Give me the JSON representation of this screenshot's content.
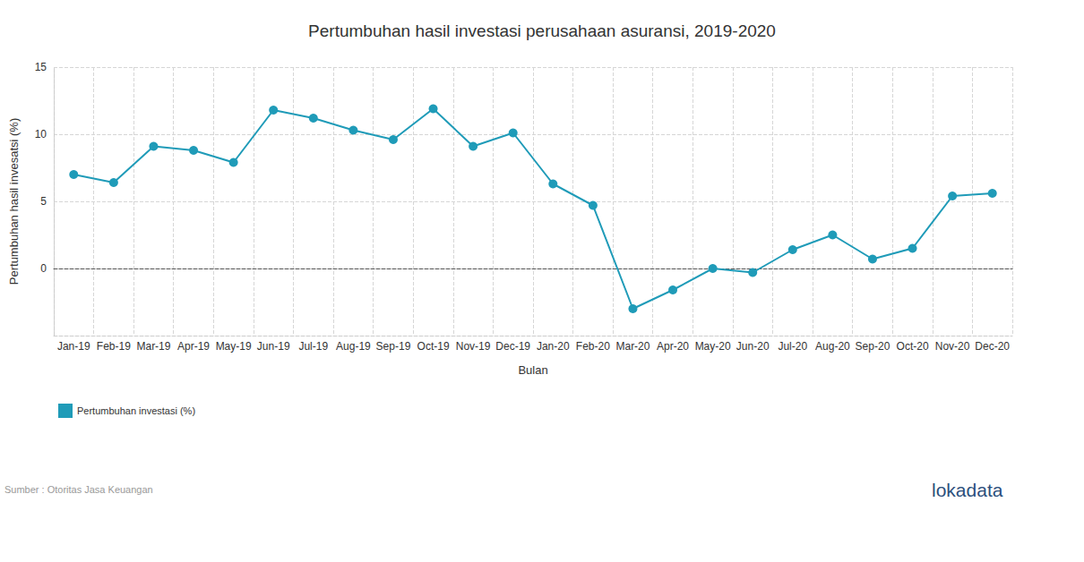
{
  "chart_data": {
    "type": "line",
    "title": "Pertumbuhan hasil investasi perusahaan asuransi, 2019-2020",
    "x_label": "Bulan",
    "y_label": "Pertumbuhan hasil invesatsi (%)",
    "source": "Sumber : Otoritas Jasa Keuangan",
    "credit": "lokadata",
    "categories": [
      "Jan-19",
      "Feb-19",
      "Mar-19",
      "Apr-19",
      "May-19",
      "Jun-19",
      "Jul-19",
      "Aug-19",
      "Sep-19",
      "Oct-19",
      "Nov-19",
      "Dec-19",
      "Jan-20",
      "Feb-20",
      "Mar-20",
      "Apr-20",
      "May-20",
      "Jun-20",
      "Jul-20",
      "Aug-20",
      "Sep-20",
      "Oct-20",
      "Nov-20",
      "Dec-20"
    ],
    "series": [
      {
        "name": "Pertumbuhan investasi (%)",
        "color": "#1f9bb8",
        "marker": "circle",
        "line_style": "solid",
        "values": [
          7.0,
          6.4,
          9.1,
          8.8,
          7.9,
          11.8,
          11.2,
          10.3,
          9.6,
          11.9,
          9.1,
          10.1,
          6.3,
          4.7,
          -3.0,
          -1.6,
          0.0,
          -0.3,
          1.4,
          2.5,
          0.7,
          1.5,
          5.4,
          5.6
        ]
      }
    ],
    "ylim": [
      -5,
      15
    ],
    "yticks": [
      0,
      5,
      10,
      15
    ],
    "grid": true,
    "legend": "bottom-left"
  }
}
